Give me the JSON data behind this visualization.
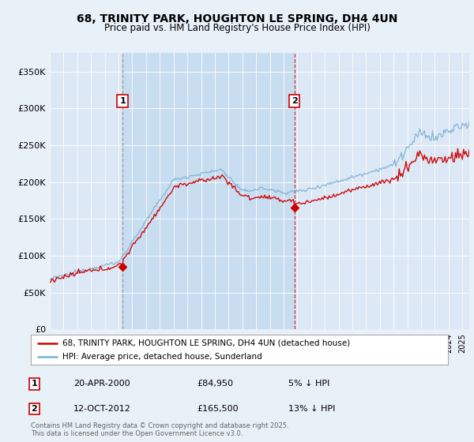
{
  "title1": "68, TRINITY PARK, HOUGHTON LE SPRING, DH4 4UN",
  "title2": "Price paid vs. HM Land Registry's House Price Index (HPI)",
  "y_values": [
    0,
    50000,
    100000,
    150000,
    200000,
    250000,
    300000,
    350000
  ],
  "ylim": [
    0,
    375000
  ],
  "xlim_start": 1995,
  "xlim_end": 2025.5,
  "background_color": "#e8f0f8",
  "plot_bg": "#dce8f5",
  "shaded_bg": "#c8ddf0",
  "legend_label_red": "68, TRINITY PARK, HOUGHTON LE SPRING, DH4 4UN (detached house)",
  "legend_label_blue": "HPI: Average price, detached house, Sunderland",
  "annotation1_date": "20-APR-2000",
  "annotation1_price": "£84,950",
  "annotation1_hpi": "5% ↓ HPI",
  "annotation2_date": "12-OCT-2012",
  "annotation2_price": "£165,500",
  "annotation2_hpi": "13% ↓ HPI",
  "vline1_x": 2000.29,
  "vline2_x": 2012.79,
  "footer": "Contains HM Land Registry data © Crown copyright and database right 2025.\nThis data is licensed under the Open Government Licence v3.0.",
  "red_color": "#cc0000",
  "blue_color": "#7ab0d4",
  "sale1_x": 2000.29,
  "sale1_y": 84950,
  "sale2_x": 2012.79,
  "sale2_y": 165500
}
